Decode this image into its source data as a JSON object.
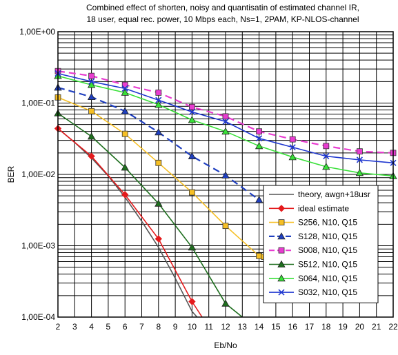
{
  "chart_data": {
    "type": "line",
    "title": [
      "Combined effect of shorten, noisy and quantisatin of estimated channel IR,",
      "18 user, equal rec. power, 10 Mbps each, Ns=1, 2PAM, KP-NLOS-channel"
    ],
    "xlabel": "Eb/No",
    "ylabel": "BER",
    "xlim": [
      2,
      22
    ],
    "ylim": [
      0.0001,
      1
    ],
    "yscale": "log",
    "xticks": [
      "2",
      "3",
      "4",
      "5",
      "6",
      "7",
      "8",
      "9",
      "10",
      "11",
      "12",
      "13",
      "14",
      "15",
      "16",
      "17",
      "18",
      "19",
      "20",
      "21",
      "22"
    ],
    "yticks": [
      "1,00E+00",
      "1,00E-01",
      "1,00E-02",
      "1,00E-03",
      "1,00E-04"
    ],
    "grid": true,
    "legend_position": "bottom-right",
    "series": [
      {
        "name": "theory, awgn+18usr",
        "color": "#555555",
        "dash": "solid",
        "marker": "none",
        "x": [
          2,
          3,
          4,
          5,
          6,
          7,
          8,
          9,
          10,
          10.3
        ],
        "y": [
          0.044,
          0.028,
          0.017,
          0.0095,
          0.0048,
          0.0022,
          0.00095,
          0.00035,
          0.00012,
          0.0001
        ]
      },
      {
        "name": "ideal estimate",
        "color": "#e41a1c",
        "dash": "solid",
        "marker": "diamond",
        "x": [
          2,
          4,
          6,
          8,
          10,
          10.6
        ],
        "y": [
          0.044,
          0.018,
          0.0052,
          0.00125,
          0.000165,
          0.0001
        ]
      },
      {
        "name": "S256, N10, Q15",
        "color": "#f6bf24",
        "dash": "solid",
        "marker": "square",
        "x": [
          2,
          4,
          6,
          8,
          10,
          12,
          14,
          14.3
        ],
        "y": [
          0.12,
          0.077,
          0.037,
          0.0145,
          0.0056,
          0.0019,
          0.00072,
          0.0007
        ]
      },
      {
        "name": "S128, N10, Q15",
        "color": "#1f3fbf",
        "dash": "dash",
        "marker": "triangle",
        "x": [
          2,
          4,
          6,
          8,
          10,
          12,
          14
        ],
        "y": [
          0.165,
          0.122,
          0.077,
          0.039,
          0.018,
          0.0097,
          0.0044
        ]
      },
      {
        "name": "S008, N10, Q15",
        "color": "#e83cd0",
        "dash": "dash",
        "marker": "square",
        "x": [
          2,
          4,
          6,
          8,
          10,
          12,
          14,
          16,
          18,
          20,
          22
        ],
        "y": [
          0.28,
          0.24,
          0.18,
          0.14,
          0.088,
          0.065,
          0.04,
          0.031,
          0.025,
          0.021,
          0.02
        ]
      },
      {
        "name": "S512, N10, Q15",
        "color": "#1e6e1e",
        "dash": "solid",
        "marker": "triangle",
        "x": [
          2,
          4,
          6,
          8,
          10,
          12,
          13
        ],
        "y": [
          0.072,
          0.034,
          0.0125,
          0.0039,
          0.00095,
          0.000155,
          0.0001
        ]
      },
      {
        "name": "S064, N10, Q15",
        "color": "#38e038",
        "dash": "solid",
        "marker": "triangle",
        "x": [
          2,
          4,
          6,
          8,
          10,
          12,
          14,
          16,
          18,
          20,
          22
        ],
        "y": [
          0.24,
          0.18,
          0.14,
          0.095,
          0.058,
          0.04,
          0.025,
          0.0175,
          0.0128,
          0.0105,
          0.0095
        ]
      },
      {
        "name": "S032, N10, Q15",
        "color": "#2038d0",
        "dash": "solid",
        "marker": "x",
        "x": [
          2,
          4,
          6,
          8,
          10,
          12,
          14,
          16,
          18,
          20,
          22
        ],
        "y": [
          0.26,
          0.2,
          0.16,
          0.11,
          0.075,
          0.055,
          0.032,
          0.024,
          0.018,
          0.016,
          0.0145
        ]
      }
    ]
  }
}
